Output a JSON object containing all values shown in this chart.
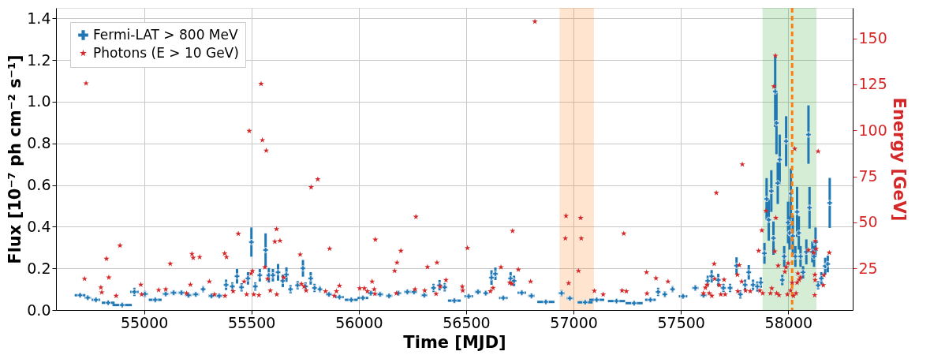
{
  "chart_data": {
    "type": "scatter",
    "xlabel": "Time [MJD]",
    "ylabel": "Flux [10⁻⁷ ph cm⁻² s⁻¹]",
    "y2label": "Energy [GeV]",
    "xlim": [
      54590,
      58300
    ],
    "xticks": [
      55000,
      55500,
      56000,
      56500,
      57000,
      57500,
      58000
    ],
    "ylim": [
      0,
      1.45
    ],
    "yticks": [
      {
        "value": 0,
        "label": "0.0"
      },
      {
        "value": 0.2,
        "label": "0.2"
      },
      {
        "value": 0.4,
        "label": "0.4"
      },
      {
        "value": 0.6,
        "label": "0.6"
      },
      {
        "value": 0.8,
        "label": "0.8"
      },
      {
        "value": 1.0,
        "label": "1.0"
      },
      {
        "value": 1.2,
        "label": "1.2"
      },
      {
        "value": 1.4,
        "label": "1.4"
      }
    ],
    "y2lim": [
      2.3,
      166.6
    ],
    "y2ticks": [
      25,
      50,
      75,
      100,
      125,
      150
    ],
    "grid": true,
    "legend": "top left",
    "bands": [
      {
        "axis": "x",
        "from": 56935,
        "to": 57095,
        "color": "#ff7f0e"
      },
      {
        "axis": "x",
        "from": 57880,
        "to": 58131,
        "color": "#2ca02c"
      }
    ],
    "ref_lines": [
      {
        "axis": "x",
        "value": 58018,
        "color": "#ff7f0e",
        "line_style": "dashed"
      }
    ],
    "series": [
      {
        "name": "Fermi-LAT > 800 MeV",
        "type": "scatter",
        "marker": "cross",
        "color": "#1f77b4",
        "x": [
          54702,
          54738,
          54776,
          54833,
          54898,
          54955,
          55004,
          55052,
          55101,
          55138,
          55174,
          55207,
          55241,
          55275,
          55314,
          55350,
          55382,
          55411,
          55433,
          55454,
          55484,
          55500,
          55518,
          55539,
          55566,
          55581,
          55600,
          55624,
          55646,
          55663,
          55682,
          55715,
          55740,
          55752,
          55776,
          55794,
          55819,
          55861,
          55910,
          55965,
          56019,
          56056,
          56099,
          56141,
          56184,
          56226,
          56257,
          56305,
          56348,
          56376,
          56400,
          56445,
          56512,
          56555,
          56591,
          56618,
          56636,
          56673,
          56707,
          56723,
          56759,
          56804,
          56871,
          56944,
          56983,
          57054,
          57108,
          57200,
          57282,
          57358,
          57394,
          57425,
          57461,
          57510,
          57567,
          57605,
          57625,
          57643,
          57674,
          57698,
          57729,
          57759,
          57777,
          57799,
          57816,
          57836,
          57856,
          57872,
          57889,
          57899,
          57909,
          57921,
          57931,
          57939,
          57945,
          57951,
          57960,
          57972,
          57981,
          57990,
          57999,
          58006,
          58012,
          58021,
          58033,
          58041,
          58049,
          58057,
          58069,
          58084,
          58094,
          58099,
          58112,
          58120,
          58127,
          58139,
          58154,
          58172,
          58184,
          58193
        ],
        "values": [
          0.071,
          0.059,
          0.049,
          0.035,
          0.024,
          0.087,
          0.077,
          0.049,
          0.077,
          0.083,
          0.083,
          0.071,
          0.075,
          0.1,
          0.068,
          0.068,
          0.121,
          0.113,
          0.162,
          0.109,
          0.152,
          0.326,
          0.113,
          0.167,
          0.288,
          0.167,
          0.167,
          0.181,
          0.14,
          0.17,
          0.1,
          0.119,
          0.2,
          0.113,
          0.152,
          0.106,
          0.1,
          0.075,
          0.062,
          0.049,
          0.058,
          0.081,
          0.075,
          0.068,
          0.081,
          0.087,
          0.087,
          0.071,
          0.106,
          0.119,
          0.109,
          0.045,
          0.066,
          0.087,
          0.081,
          0.156,
          0.174,
          0.058,
          0.152,
          0.14,
          0.083,
          0.068,
          0.039,
          0.081,
          0.056,
          0.037,
          0.049,
          0.043,
          0.033,
          0.049,
          0.087,
          0.075,
          0.1,
          0.066,
          0.106,
          0.071,
          0.14,
          0.162,
          0.144,
          0.106,
          0.106,
          0.213,
          0.075,
          0.121,
          0.181,
          0.121,
          0.113,
          0.132,
          0.272,
          0.533,
          0.433,
          0.571,
          0.345,
          1.049,
          0.898,
          0.609,
          0.722,
          0.144,
          0.257,
          0.81,
          0.42,
          0.37,
          0.559,
          0.355,
          0.257,
          0.471,
          0.37,
          0.257,
          0.181,
          0.279,
          0.842,
          0.491,
          0.279,
          0.257,
          0.326,
          0.119,
          0.152,
          0.211,
          0.221,
          0.514
        ],
        "errors": [
          0.008,
          0.008,
          0.008,
          0.006,
          0.005,
          0.02,
          0.015,
          0.008,
          0.012,
          0.012,
          0.01,
          0.012,
          0.01,
          0.015,
          0.01,
          0.01,
          0.025,
          0.02,
          0.035,
          0.02,
          0.03,
          0.07,
          0.02,
          0.03,
          0.08,
          0.035,
          0.03,
          0.04,
          0.03,
          0.035,
          0.02,
          0.02,
          0.04,
          0.02,
          0.03,
          0.02,
          0.015,
          0.01,
          0.01,
          0.008,
          0.008,
          0.012,
          0.01,
          0.01,
          0.012,
          0.012,
          0.012,
          0.01,
          0.02,
          0.025,
          0.02,
          0.006,
          0.01,
          0.012,
          0.012,
          0.035,
          0.03,
          0.008,
          0.03,
          0.025,
          0.012,
          0.012,
          0.006,
          0.015,
          0.01,
          0.006,
          0.008,
          0.006,
          0.005,
          0.008,
          0.02,
          0.015,
          0.015,
          0.01,
          0.015,
          0.012,
          0.025,
          0.03,
          0.03,
          0.02,
          0.02,
          0.04,
          0.02,
          0.025,
          0.035,
          0.025,
          0.025,
          0.025,
          0.05,
          0.1,
          0.1,
          0.1,
          0.08,
          0.17,
          0.15,
          0.1,
          0.12,
          0.025,
          0.05,
          0.12,
          0.1,
          0.08,
          0.12,
          0.1,
          0.05,
          0.12,
          0.08,
          0.05,
          0.03,
          0.06,
          0.14,
          0.1,
          0.05,
          0.05,
          0.07,
          0.02,
          0.03,
          0.04,
          0.04,
          0.12
        ],
        "xerrors": [
          25,
          15,
          20,
          30,
          45,
          20,
          15,
          30,
          15,
          15,
          15,
          15,
          15,
          10,
          15,
          15,
          8,
          12,
          5,
          8,
          8,
          5,
          10,
          8,
          5,
          5,
          5,
          5,
          5,
          5,
          8,
          8,
          4,
          5,
          5,
          8,
          10,
          15,
          20,
          30,
          25,
          15,
          15,
          15,
          15,
          15,
          15,
          15,
          8,
          5,
          8,
          30,
          20,
          15,
          10,
          4,
          4,
          20,
          4,
          4,
          20,
          15,
          40,
          15,
          15,
          35,
          35,
          40,
          40,
          25,
          5,
          10,
          10,
          20,
          15,
          15,
          5,
          5,
          5,
          12,
          12,
          6,
          5,
          5,
          6,
          5,
          5,
          6,
          6,
          6,
          6,
          6,
          6,
          6,
          6,
          6,
          6,
          6,
          6,
          6,
          6,
          6,
          6,
          6,
          6,
          6,
          6,
          6,
          6,
          6,
          6,
          6,
          6,
          6,
          6,
          5,
          5,
          6,
          6,
          6
        ]
      },
      {
        "name": "Photons (E > 10 GeV)",
        "type": "scatter",
        "marker": "star",
        "color": "#d62728",
        "axis": "y2",
        "x": [
          54730,
          54723,
          54799,
          54803,
          54825,
          54836,
          54870,
          54888,
          54985,
          54989,
          55068,
          55101,
          55122,
          55198,
          55216,
          55223,
          55229,
          55259,
          55304,
          55328,
          55375,
          55384,
          55377,
          55415,
          55439,
          55466,
          55478,
          55490,
          55505,
          55499,
          55511,
          55535,
          55545,
          55551,
          55563,
          55569,
          55575,
          55588,
          55618,
          55609,
          55617,
          55633,
          55650,
          55727,
          55733,
          55745,
          55755,
          55778,
          55809,
          55845,
          55864,
          55886,
          55896,
          55910,
          56004,
          56026,
          56040,
          56062,
          56077,
          56072,
          56075,
          56167,
          56178,
          56175,
          56196,
          56266,
          56262,
          56307,
          56320,
          56360,
          56364,
          56379,
          56406,
          56482,
          56484,
          56506,
          56613,
          56625,
          56662,
          56703,
          56713,
          56716,
          56743,
          56800,
          56820,
          56965,
          56962,
          56977,
          57023,
          57033,
          57036,
          57097,
          57138,
          57226,
          57246,
          57234,
          57340,
          57342,
          57384,
          57440,
          57605,
          57614,
          57622,
          57632,
          57644,
          57655,
          57657,
          57665,
          57679,
          57686,
          57701,
          57706,
          57763,
          57765,
          57772,
          57786,
          57783,
          57801,
          57823,
          57862,
          57868,
          57877,
          57881,
          57896,
          57917,
          57923,
          57933,
          57940,
          57937,
          57942,
          57946,
          57953,
          57957,
          57984,
          57990,
          57999,
          57996,
          58011,
          58018,
          58024,
          58030,
          58036,
          58041,
          58045,
          58051,
          58057,
          58094,
          58118,
          58124,
          58126,
          58130,
          58125,
          58123,
          58139,
          58163,
          58166,
          58191
        ],
        "values": [
          125.6,
          19.3,
          14.6,
          11.9,
          30.2,
          20.0,
          10.0,
          37.4,
          16.1,
          10.8,
          13.2,
          13.6,
          27.5,
          11.4,
          16.1,
          32.8,
          30.7,
          31.1,
          17.8,
          10.8,
          33.1,
          31.1,
          10.0,
          12.5,
          43.8,
          17.8,
          10.8,
          99.7,
          23.6,
          22.2,
          10.8,
          10.4,
          125.3,
          94.7,
          25.6,
          89.0,
          19.3,
          12.9,
          10.8,
          39.5,
          46.3,
          40.0,
          20.0,
          32.5,
          16.5,
          15.1,
          12.9,
          69.1,
          73.4,
          12.5,
          35.7,
          10.0,
          12.5,
          15.5,
          14.1,
          14.1,
          12.5,
          17.8,
          40.6,
          13.6,
          11.1,
          23.6,
          28.1,
          11.4,
          34.5,
          53.0,
          13.6,
          12.9,
          25.7,
          11.1,
          28.1,
          15.1,
          18.6,
          15.1,
          12.9,
          36.0,
          12.5,
          14.3,
          25.6,
          17.2,
          16.5,
          45.3,
          24.3,
          17.8,
          159.2,
          53.5,
          41.3,
          16.9,
          23.6,
          52.4,
          41.3,
          12.7,
          10.8,
          12.9,
          12.5,
          43.9,
          22.8,
          11.3,
          19.6,
          17.8,
          11.4,
          14.4,
          16.0,
          11.4,
          10.0,
          27.4,
          19.3,
          66.0,
          15.8,
          10.8,
          18.8,
          10.8,
          21.5,
          12.5,
          26.7,
          81.5,
          17.8,
          12.9,
          12.5,
          34.5,
          12.9,
          45.6,
          11.4,
          56.3,
          11.4,
          14.1,
          123.9,
          140.6,
          34.2,
          52.4,
          11.4,
          26.4,
          10.4,
          23.1,
          25.6,
          27.7,
          10.8,
          12.9,
          17.2,
          10.0,
          90.0,
          11.4,
          17.2,
          22.2,
          18.8,
          20.0,
          34.9,
          33.5,
          21.5,
          39.9,
          35.6,
          18.6,
          10.4,
          88.6,
          15.8,
          21.3,
          33.5
        ]
      }
    ]
  }
}
